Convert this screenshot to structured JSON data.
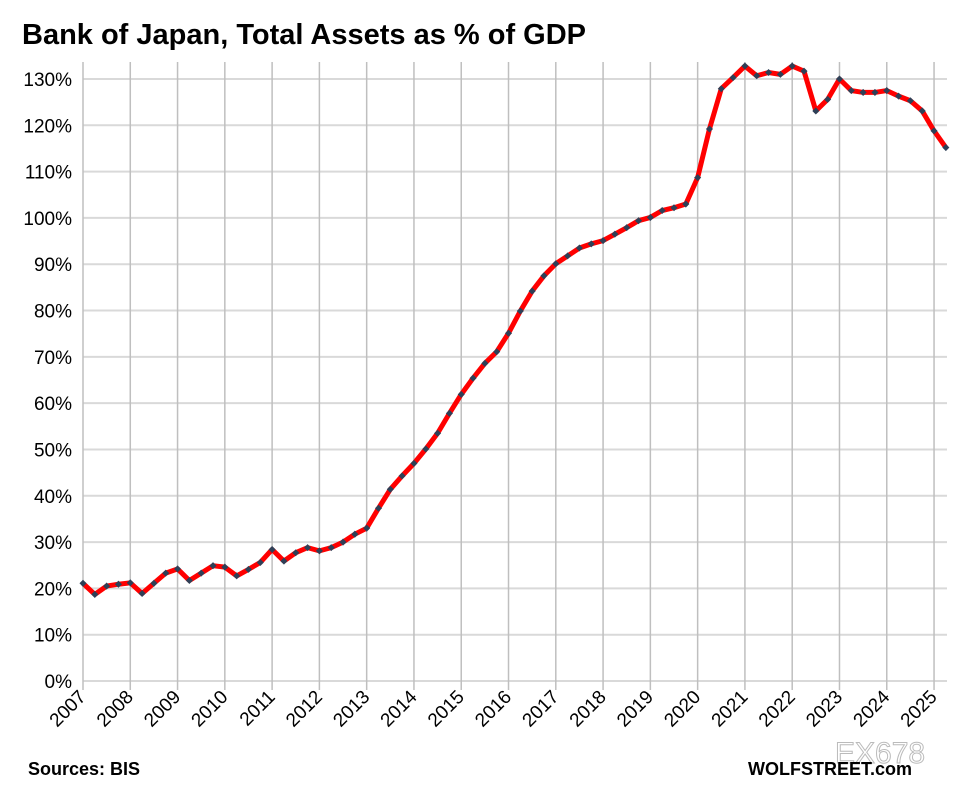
{
  "chart_data": {
    "type": "line",
    "title": "Bank of Japan, Total Assets as % of GDP",
    "xlabel": "",
    "ylabel": "",
    "ylim": [
      0,
      130
    ],
    "yticks": [
      "0%",
      "10%",
      "20%",
      "30%",
      "40%",
      "50%",
      "60%",
      "70%",
      "80%",
      "90%",
      "100%",
      "110%",
      "120%",
      "130%"
    ],
    "xticks": [
      "2007",
      "2008",
      "2009",
      "2010",
      "2011",
      "2012",
      "2013",
      "2014",
      "2015",
      "2016",
      "2017",
      "2018",
      "2019",
      "2020",
      "2021",
      "2022",
      "2023",
      "2024",
      "2025"
    ],
    "grid": true,
    "legend": "none",
    "line_color": "#ff0000",
    "marker_color": "#2e4057",
    "series": [
      {
        "x": [
          "2007Q1",
          "2007Q2",
          "2007Q3",
          "2007Q4",
          "2008Q1",
          "2008Q2",
          "2008Q3",
          "2008Q4",
          "2009Q1",
          "2009Q2",
          "2009Q3",
          "2009Q4",
          "2010Q1",
          "2010Q2",
          "2010Q3",
          "2010Q4",
          "2011Q1",
          "2011Q2",
          "2011Q3",
          "2011Q4",
          "2012Q1",
          "2012Q2",
          "2012Q3",
          "2012Q4",
          "2013Q1",
          "2013Q2",
          "2013Q3",
          "2013Q4",
          "2014Q1",
          "2014Q2",
          "2014Q3",
          "2014Q4",
          "2015Q1",
          "2015Q2",
          "2015Q3",
          "2015Q4",
          "2016Q1",
          "2016Q2",
          "2016Q3",
          "2016Q4",
          "2017Q1",
          "2017Q2",
          "2017Q3",
          "2017Q4",
          "2018Q1",
          "2018Q2",
          "2018Q3",
          "2018Q4",
          "2019Q1",
          "2019Q2",
          "2019Q3",
          "2019Q4",
          "2020Q1",
          "2020Q2",
          "2020Q3",
          "2020Q4",
          "2021Q1",
          "2021Q2",
          "2021Q3",
          "2021Q4",
          "2022Q1",
          "2022Q2",
          "2022Q3",
          "2022Q4",
          "2023Q1",
          "2023Q2",
          "2023Q3",
          "2023Q4",
          "2024Q1",
          "2024Q2",
          "2024Q3",
          "2024Q4",
          "2025Q1",
          "2025Q2"
        ],
        "values": [
          21.1,
          18.7,
          20.5,
          20.9,
          21.2,
          18.9,
          21.1,
          23.3,
          24.2,
          21.7,
          23.3,
          24.9,
          24.6,
          22.7,
          24.1,
          25.6,
          28.4,
          25.9,
          27.7,
          28.8,
          28.1,
          28.8,
          30.0,
          31.7,
          33.0,
          37.3,
          41.4,
          44.3,
          47.0,
          50.1,
          53.5,
          57.8,
          61.9,
          65.4,
          68.6,
          71.1,
          75.1,
          79.9,
          84.2,
          87.5,
          90.1,
          91.8,
          93.5,
          94.4,
          95.1,
          96.5,
          97.9,
          99.4,
          100.1,
          101.6,
          102.2,
          103.0,
          108.7,
          119.2,
          127.9,
          130.3,
          132.8,
          130.7,
          131.4,
          131.0,
          132.8,
          131.7,
          123.1,
          125.6,
          130.0,
          127.5,
          127.1,
          127.1,
          127.5,
          126.3,
          125.3,
          123.1,
          118.8,
          115.2
        ]
      }
    ]
  },
  "footer": {
    "source": "Sources: BIS",
    "brand": "WOLFSTREET.com",
    "watermark": "EX678"
  }
}
